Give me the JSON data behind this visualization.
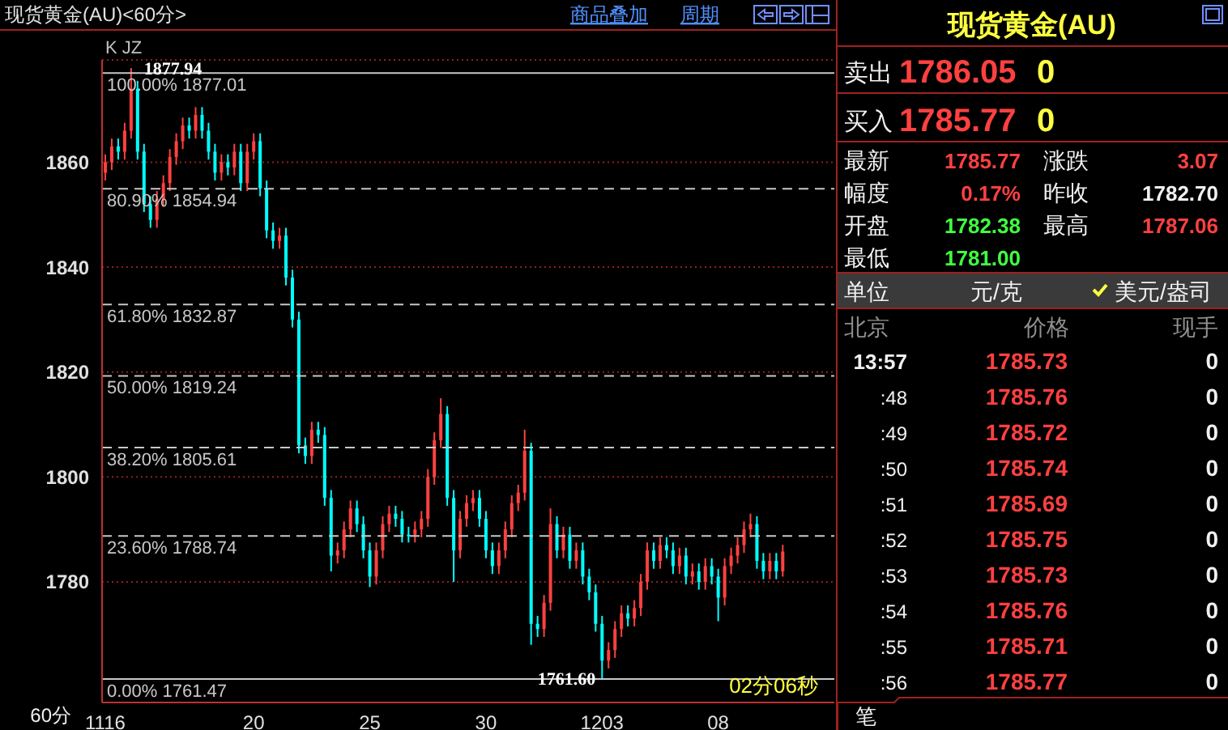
{
  "chart_data": {
    "type": "candlestick",
    "categories": [
      "1116",
      null,
      null,
      null,
      null,
      null,
      null,
      null,
      null,
      null,
      null,
      null,
      null,
      null,
      null,
      null,
      null,
      null,
      null,
      null,
      null,
      null,
      null,
      "20",
      null,
      null,
      null,
      null,
      null,
      null,
      null,
      null,
      null,
      null,
      null,
      null,
      null,
      null,
      null,
      null,
      null,
      "25",
      null,
      null,
      null,
      null,
      null,
      null,
      null,
      null,
      null,
      null,
      null,
      null,
      null,
      null,
      null,
      null,
      null,
      "30",
      null,
      null,
      null,
      null,
      null,
      null,
      null,
      null,
      null,
      null,
      null,
      null,
      null,
      null,
      null,
      null,
      null,
      "1203",
      null,
      null,
      null,
      null,
      null,
      null,
      null,
      null,
      null,
      null,
      null,
      null,
      null,
      null,
      null,
      null,
      null,
      "08",
      null,
      null,
      null,
      null,
      null,
      null,
      null,
      null,
      null,
      null
    ],
    "ohlc": [
      [
        1858,
        1861.5,
        1856.5,
        1860
      ],
      [
        1860,
        1864.5,
        1858.5,
        1863
      ],
      [
        1863,
        1864.5,
        1860.5,
        1862
      ],
      [
        1862,
        1867.5,
        1860.5,
        1866
      ],
      [
        1866,
        1877.94,
        1864.5,
        1874
      ],
      [
        1874,
        1875.5,
        1860.5,
        1862
      ],
      [
        1862,
        1863.5,
        1850.5,
        1852
      ],
      [
        1852,
        1853.5,
        1847.5,
        1849
      ],
      [
        1849,
        1854.5,
        1847.5,
        1853
      ],
      [
        1853,
        1857.5,
        1851.5,
        1856
      ],
      [
        1856,
        1862.5,
        1854.5,
        1861
      ],
      [
        1861,
        1865.5,
        1859.5,
        1864
      ],
      [
        1864,
        1868.5,
        1862.5,
        1867
      ],
      [
        1867,
        1868.5,
        1864.5,
        1866
      ],
      [
        1866,
        1870.5,
        1864.5,
        1869
      ],
      [
        1869,
        1870.5,
        1864.5,
        1866
      ],
      [
        1866,
        1867.5,
        1860.5,
        1862
      ],
      [
        1862,
        1863.5,
        1856.5,
        1858
      ],
      [
        1858,
        1861.5,
        1856.5,
        1860
      ],
      [
        1860,
        1861.5,
        1857.5,
        1859
      ],
      [
        1859,
        1863.5,
        1857.5,
        1862
      ],
      [
        1862,
        1863.5,
        1854.5,
        1856
      ],
      [
        1856,
        1863.5,
        1854.5,
        1862
      ],
      [
        1862,
        1865.5,
        1860.5,
        1864
      ],
      [
        1864,
        1865.5,
        1853.5,
        1855
      ],
      [
        1855,
        1856.5,
        1845.5,
        1847
      ],
      [
        1847,
        1848.5,
        1843.5,
        1845
      ],
      [
        1845,
        1847.5,
        1843.5,
        1846
      ],
      [
        1846,
        1847.5,
        1836.5,
        1838
      ],
      [
        1838,
        1839.5,
        1828.5,
        1830
      ],
      [
        1830,
        1831.5,
        1804.5,
        1806
      ],
      [
        1806,
        1807.5,
        1802.5,
        1804
      ],
      [
        1804,
        1810.5,
        1802.5,
        1809
      ],
      [
        1809,
        1810.5,
        1806.5,
        1808
      ],
      [
        1808,
        1809.5,
        1794.5,
        1796
      ],
      [
        1796,
        1797.5,
        1782,
        1785
      ],
      [
        1785,
        1787.5,
        1783.5,
        1786
      ],
      [
        1786,
        1791.5,
        1784.5,
        1790
      ],
      [
        1790,
        1795.5,
        1788.5,
        1794
      ],
      [
        1794,
        1795.5,
        1789.5,
        1791
      ],
      [
        1791,
        1792.5,
        1784.5,
        1786
      ],
      [
        1786,
        1787.5,
        1779,
        1781
      ],
      [
        1781,
        1787.5,
        1779.5,
        1786
      ],
      [
        1786,
        1792.5,
        1784.5,
        1791
      ],
      [
        1791,
        1794.5,
        1789.5,
        1793
      ],
      [
        1793,
        1794.5,
        1790.5,
        1792
      ],
      [
        1792,
        1793.5,
        1787.5,
        1789
      ],
      [
        1789,
        1790.5,
        1787.5,
        1789
      ],
      [
        1789,
        1791.5,
        1787.5,
        1790
      ],
      [
        1790,
        1793.5,
        1788.5,
        1792
      ],
      [
        1792,
        1801.5,
        1790.5,
        1800
      ],
      [
        1800,
        1808.5,
        1798.5,
        1807
      ],
      [
        1807,
        1815,
        1805.5,
        1812
      ],
      [
        1812,
        1813.5,
        1794.5,
        1796
      ],
      [
        1796,
        1797.5,
        1780,
        1786
      ],
      [
        1786,
        1793.5,
        1784.5,
        1792
      ],
      [
        1792,
        1796.5,
        1790.5,
        1795
      ],
      [
        1795,
        1797.5,
        1793.5,
        1796
      ],
      [
        1796,
        1797.5,
        1790.5,
        1792
      ],
      [
        1792,
        1793.5,
        1784.5,
        1786
      ],
      [
        1786,
        1787.5,
        1781.5,
        1783
      ],
      [
        1783,
        1787.5,
        1781.5,
        1786
      ],
      [
        1786,
        1791.5,
        1784.5,
        1790
      ],
      [
        1790,
        1796.5,
        1788.5,
        1795
      ],
      [
        1795,
        1798.5,
        1793.5,
        1797
      ],
      [
        1797,
        1809,
        1795.5,
        1805
      ],
      [
        1805,
        1806.5,
        1768,
        1772
      ],
      [
        1772,
        1773.5,
        1769.5,
        1771
      ],
      [
        1771,
        1777.5,
        1769.5,
        1776
      ],
      [
        1776,
        1794,
        1774.5,
        1791
      ],
      [
        1791,
        1792.5,
        1784.5,
        1786
      ],
      [
        1786,
        1790.5,
        1784.5,
        1789
      ],
      [
        1789,
        1790.5,
        1782.5,
        1784
      ],
      [
        1784,
        1787.5,
        1782.5,
        1786
      ],
      [
        1786,
        1787.5,
        1779.5,
        1781
      ],
      [
        1781,
        1782.5,
        1776.5,
        1778
      ],
      [
        1778,
        1779.5,
        1770.5,
        1772
      ],
      [
        1772,
        1773.5,
        1761.6,
        1765
      ],
      [
        1765,
        1768.5,
        1763.5,
        1767
      ],
      [
        1767,
        1772.5,
        1765.5,
        1771
      ],
      [
        1771,
        1775.5,
        1769.5,
        1774
      ],
      [
        1774,
        1775.5,
        1771.5,
        1773
      ],
      [
        1773,
        1776.5,
        1771.5,
        1775
      ],
      [
        1775,
        1781.5,
        1773.5,
        1780
      ],
      [
        1780,
        1787.5,
        1778.5,
        1786
      ],
      [
        1786,
        1787.5,
        1782.5,
        1784
      ],
      [
        1784,
        1788.5,
        1782.5,
        1787
      ],
      [
        1787,
        1788.5,
        1784.5,
        1786
      ],
      [
        1786,
        1787.5,
        1781.5,
        1783
      ],
      [
        1783,
        1786.5,
        1781.5,
        1785
      ],
      [
        1785,
        1786.5,
        1779.5,
        1781
      ],
      [
        1781,
        1783.5,
        1779.5,
        1782
      ],
      [
        1782,
        1783.5,
        1778.5,
        1780
      ],
      [
        1780,
        1784.5,
        1778.5,
        1783
      ],
      [
        1783,
        1784.5,
        1779.5,
        1781
      ],
      [
        1781,
        1782.5,
        1772.5,
        1777
      ],
      [
        1777,
        1784.5,
        1775.5,
        1783
      ],
      [
        1783,
        1786.5,
        1781.5,
        1785
      ],
      [
        1785,
        1788.5,
        1783.5,
        1787
      ],
      [
        1787,
        1791.5,
        1785.5,
        1790
      ],
      [
        1790,
        1793,
        1788.5,
        1791
      ],
      [
        1791,
        1792.5,
        1782.5,
        1784
      ],
      [
        1784,
        1785.5,
        1780.5,
        1782
      ],
      [
        1782,
        1785.5,
        1780.5,
        1784
      ],
      [
        1784,
        1785.5,
        1780.5,
        1782
      ],
      [
        1782,
        1787.06,
        1781,
        1785.77
      ]
    ],
    "colors": [
      "#ff4040",
      "#ff4040",
      "#00ffff",
      "#ff4040",
      "#ff4040",
      "#00ffff",
      "#00ffff",
      "#00ffff",
      "#ff4040",
      "#ff4040",
      "#ff4040",
      "#ff4040",
      "#ff4040",
      "#00ffff",
      "#ff4040",
      "#00ffff",
      "#00ffff",
      "#00ffff",
      "#ff4040",
      "#00ffff",
      "#ff4040",
      "#00ffff",
      "#ff4040",
      "#ff4040",
      "#00ffff",
      "#00ffff",
      "#00ffff",
      "#ff4040",
      "#00ffff",
      "#00ffff",
      "#00ffff",
      "#00ffff",
      "#ff4040",
      "#00ffff",
      "#00ffff",
      "#00ffff",
      "#ff4040",
      "#ff4040",
      "#ff4040",
      "#00ffff",
      "#00ffff",
      "#00ffff",
      "#ff4040",
      "#ff4040",
      "#ff4040",
      "#00ffff",
      "#00ffff",
      "#00ffff",
      "#ff4040",
      "#ff4040",
      "#ff4040",
      "#ff4040",
      "#ff4040",
      "#00ffff",
      "#00ffff",
      "#ff4040",
      "#ff4040",
      "#ff4040",
      "#00ffff",
      "#00ffff",
      "#00ffff",
      "#ff4040",
      "#ff4040",
      "#ff4040",
      "#ff4040",
      "#ff4040",
      "#00ffff",
      "#00ffff",
      "#ff4040",
      "#ff4040",
      "#00ffff",
      "#ff4040",
      "#00ffff",
      "#ff4040",
      "#00ffff",
      "#00ffff",
      "#00ffff",
      "#00ffff",
      "#ff4040",
      "#ff4040",
      "#ff4040",
      "#00ffff",
      "#ff4040",
      "#ff4040",
      "#ff4040",
      "#00ffff",
      "#ff4040",
      "#00ffff",
      "#00ffff",
      "#ff4040",
      "#00ffff",
      "#ff4040",
      "#00ffff",
      "#ff4040",
      "#00ffff",
      "#00ffff",
      "#ff4040",
      "#ff4040",
      "#ff4040",
      "#ff4040",
      "#ff4040",
      "#00ffff",
      "#00ffff",
      "#ff4040",
      "#00ffff",
      "#ff4040"
    ],
    "ylim": [
      1757,
      1879.5
    ],
    "yticks": [
      1780,
      1800,
      1820,
      1840,
      1860
    ],
    "grid": "y",
    "ref_lines": [
      {
        "axis": "y",
        "value": 1877.01,
        "label": "100.00% 1877.01",
        "color": "#c8c8c8",
        "line_style": "solid"
      },
      {
        "axis": "y",
        "value": 1854.94,
        "label": "80.90% 1854.94",
        "color": "#c8c8c8",
        "line_style": "dashed"
      },
      {
        "axis": "y",
        "value": 1832.87,
        "label": "61.80% 1832.87",
        "color": "#c8c8c8",
        "line_style": "dashed"
      },
      {
        "axis": "y",
        "value": 1819.24,
        "label": "50.00% 1819.24",
        "color": "#c8c8c8",
        "line_style": "dashed"
      },
      {
        "axis": "y",
        "value": 1805.61,
        "label": "38.20% 1805.61",
        "color": "#c8c8c8",
        "line_style": "dashed"
      },
      {
        "axis": "y",
        "value": 1788.74,
        "label": "23.60% 1788.74",
        "color": "#c8c8c8",
        "line_style": "dashed"
      },
      {
        "axis": "y",
        "value": 1761.47,
        "label": "0.00% 1761.47",
        "color": "#c8c8c8",
        "line_style": "solid"
      }
    ],
    "xlabel": "60分",
    "annotations": [
      "现货黄金(AU)<60分>",
      "商品叠加",
      "周期",
      "K JZ",
      "02分06秒",
      "现货黄金(AU)",
      "卖出",
      "1786.05",
      "0",
      "买入",
      "1785.77",
      "0",
      "最新",
      "1785.77",
      "涨跌",
      "3.07",
      "幅度",
      "0.17%",
      "昨收",
      "1782.70",
      "开盘",
      "1782.38",
      "最高",
      "1787.06",
      "最低",
      "1781.00",
      "单位",
      "元/克",
      "美元/盎司",
      "北京",
      "价格",
      "现手",
      "13:57",
      "1785.73",
      "0",
      ":48",
      "1785.76",
      "0",
      ":49",
      "1785.72",
      "0",
      ":50",
      "1785.74",
      "0",
      ":51",
      "1785.69",
      "0",
      ":52",
      "1785.75",
      "0",
      ":53",
      "1785.73",
      "0",
      ":54",
      "1785.76",
      "0",
      ":55",
      "1785.71",
      "0",
      ":56",
      "1785.77",
      "0",
      "笔",
      {
        "text": "1877.94",
        "y": 1877.94
      },
      {
        "text": "1761.60",
        "y": 1761.6
      }
    ]
  }
}
